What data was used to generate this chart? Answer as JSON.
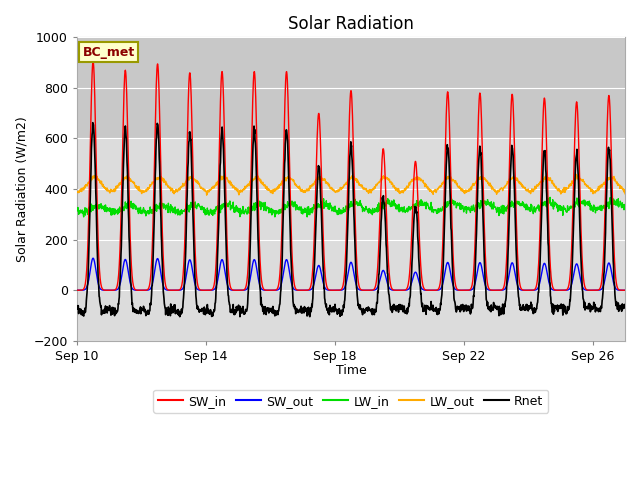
{
  "title": "Solar Radiation",
  "xlabel": "Time",
  "ylabel": "Solar Radiation (W/m2)",
  "ylim": [
    -200,
    1000
  ],
  "xlim_days": [
    0,
    17
  ],
  "x_tick_labels": [
    "Sep 10",
    "Sep 14",
    "Sep 18",
    "Sep 22",
    "Sep 26"
  ],
  "x_tick_positions": [
    0,
    4,
    8,
    12,
    16
  ],
  "annotation": "BC_met",
  "bg_color": "#dcdcdc",
  "bg_color_upper": "#d0d0d0",
  "fig_color": "#ffffff",
  "lines": {
    "SW_in": {
      "color": "#ff0000",
      "lw": 1.0
    },
    "SW_out": {
      "color": "#0000ff",
      "lw": 1.0
    },
    "LW_in": {
      "color": "#00dd00",
      "lw": 1.0
    },
    "LW_out": {
      "color": "#ffaa00",
      "lw": 1.0
    },
    "Rnet": {
      "color": "#000000",
      "lw": 1.2
    }
  },
  "legend_labels": [
    "SW_in",
    "SW_out",
    "LW_in",
    "LW_out",
    "Rnet"
  ],
  "legend_colors": [
    "#ff0000",
    "#0000ff",
    "#00dd00",
    "#ffaa00",
    "#000000"
  ],
  "SW_in_peaks": [
    905,
    870,
    895,
    860,
    865,
    865,
    865,
    700,
    790,
    560,
    510,
    785,
    780,
    775,
    760,
    745,
    770
  ],
  "n_days": 17,
  "pts_per_day": 96
}
